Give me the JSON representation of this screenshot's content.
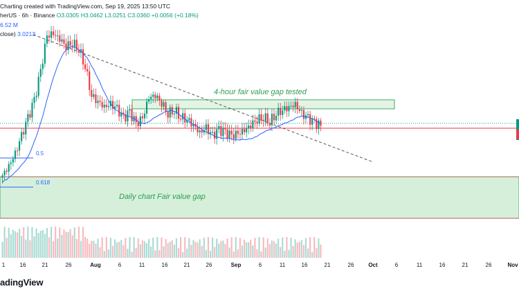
{
  "header": {
    "line1_prefix": "Charting created with TradingView.com, Sep 19, 2025 13:50 UTC",
    "symbol": "herUS · 6h · Binance",
    "ohlc": "O3.0305 H3.0462 L3.0251 C3.0360 +0.0056 (+0.18%)",
    "volume": "6.52 M",
    "ma_label": "close)",
    "ma_value": "3.0213"
  },
  "logo": "adingView",
  "annotations": {
    "fvg_4h": "4-hour fair value gap tested",
    "fvg_daily": "Daily chart Fair value gap",
    "fib_05": "0.5",
    "fib_0618": "0.618"
  },
  "colors": {
    "up": "#089981",
    "down": "#f23645",
    "ma": "#2962ff",
    "zone_fill": "#d6efdb",
    "zone_border": "#3fae5a",
    "trend": "#555555"
  },
  "chart_data": {
    "type": "candlestick",
    "x_ticks": [
      "1",
      "16",
      "21",
      "26",
      "Aug",
      "6",
      "11",
      "16",
      "21",
      "26",
      "Sep",
      "6",
      "11",
      "16",
      "21",
      "26",
      "Oct",
      "6",
      "11",
      "16",
      "21",
      "26",
      "Nov"
    ],
    "candles_close_approx": [
      2.62,
      2.7,
      2.8,
      2.95,
      3.1,
      3.25,
      3.5,
      3.8,
      3.82,
      3.78,
      3.72,
      3.75,
      3.7,
      3.55,
      3.3,
      3.25,
      3.2,
      3.22,
      3.18,
      3.1,
      3.15,
      3.05,
      3.1,
      3.28,
      3.3,
      3.24,
      3.15,
      3.18,
      3.12,
      3.1,
      3.05,
      2.98,
      3.02,
      2.95,
      3.0,
      2.98,
      2.95,
      2.97,
      3.0,
      3.05,
      3.1,
      3.12,
      3.08,
      3.15,
      3.18,
      3.2,
      3.22,
      3.14,
      3.1,
      3.06,
      3.04
    ]
  }
}
